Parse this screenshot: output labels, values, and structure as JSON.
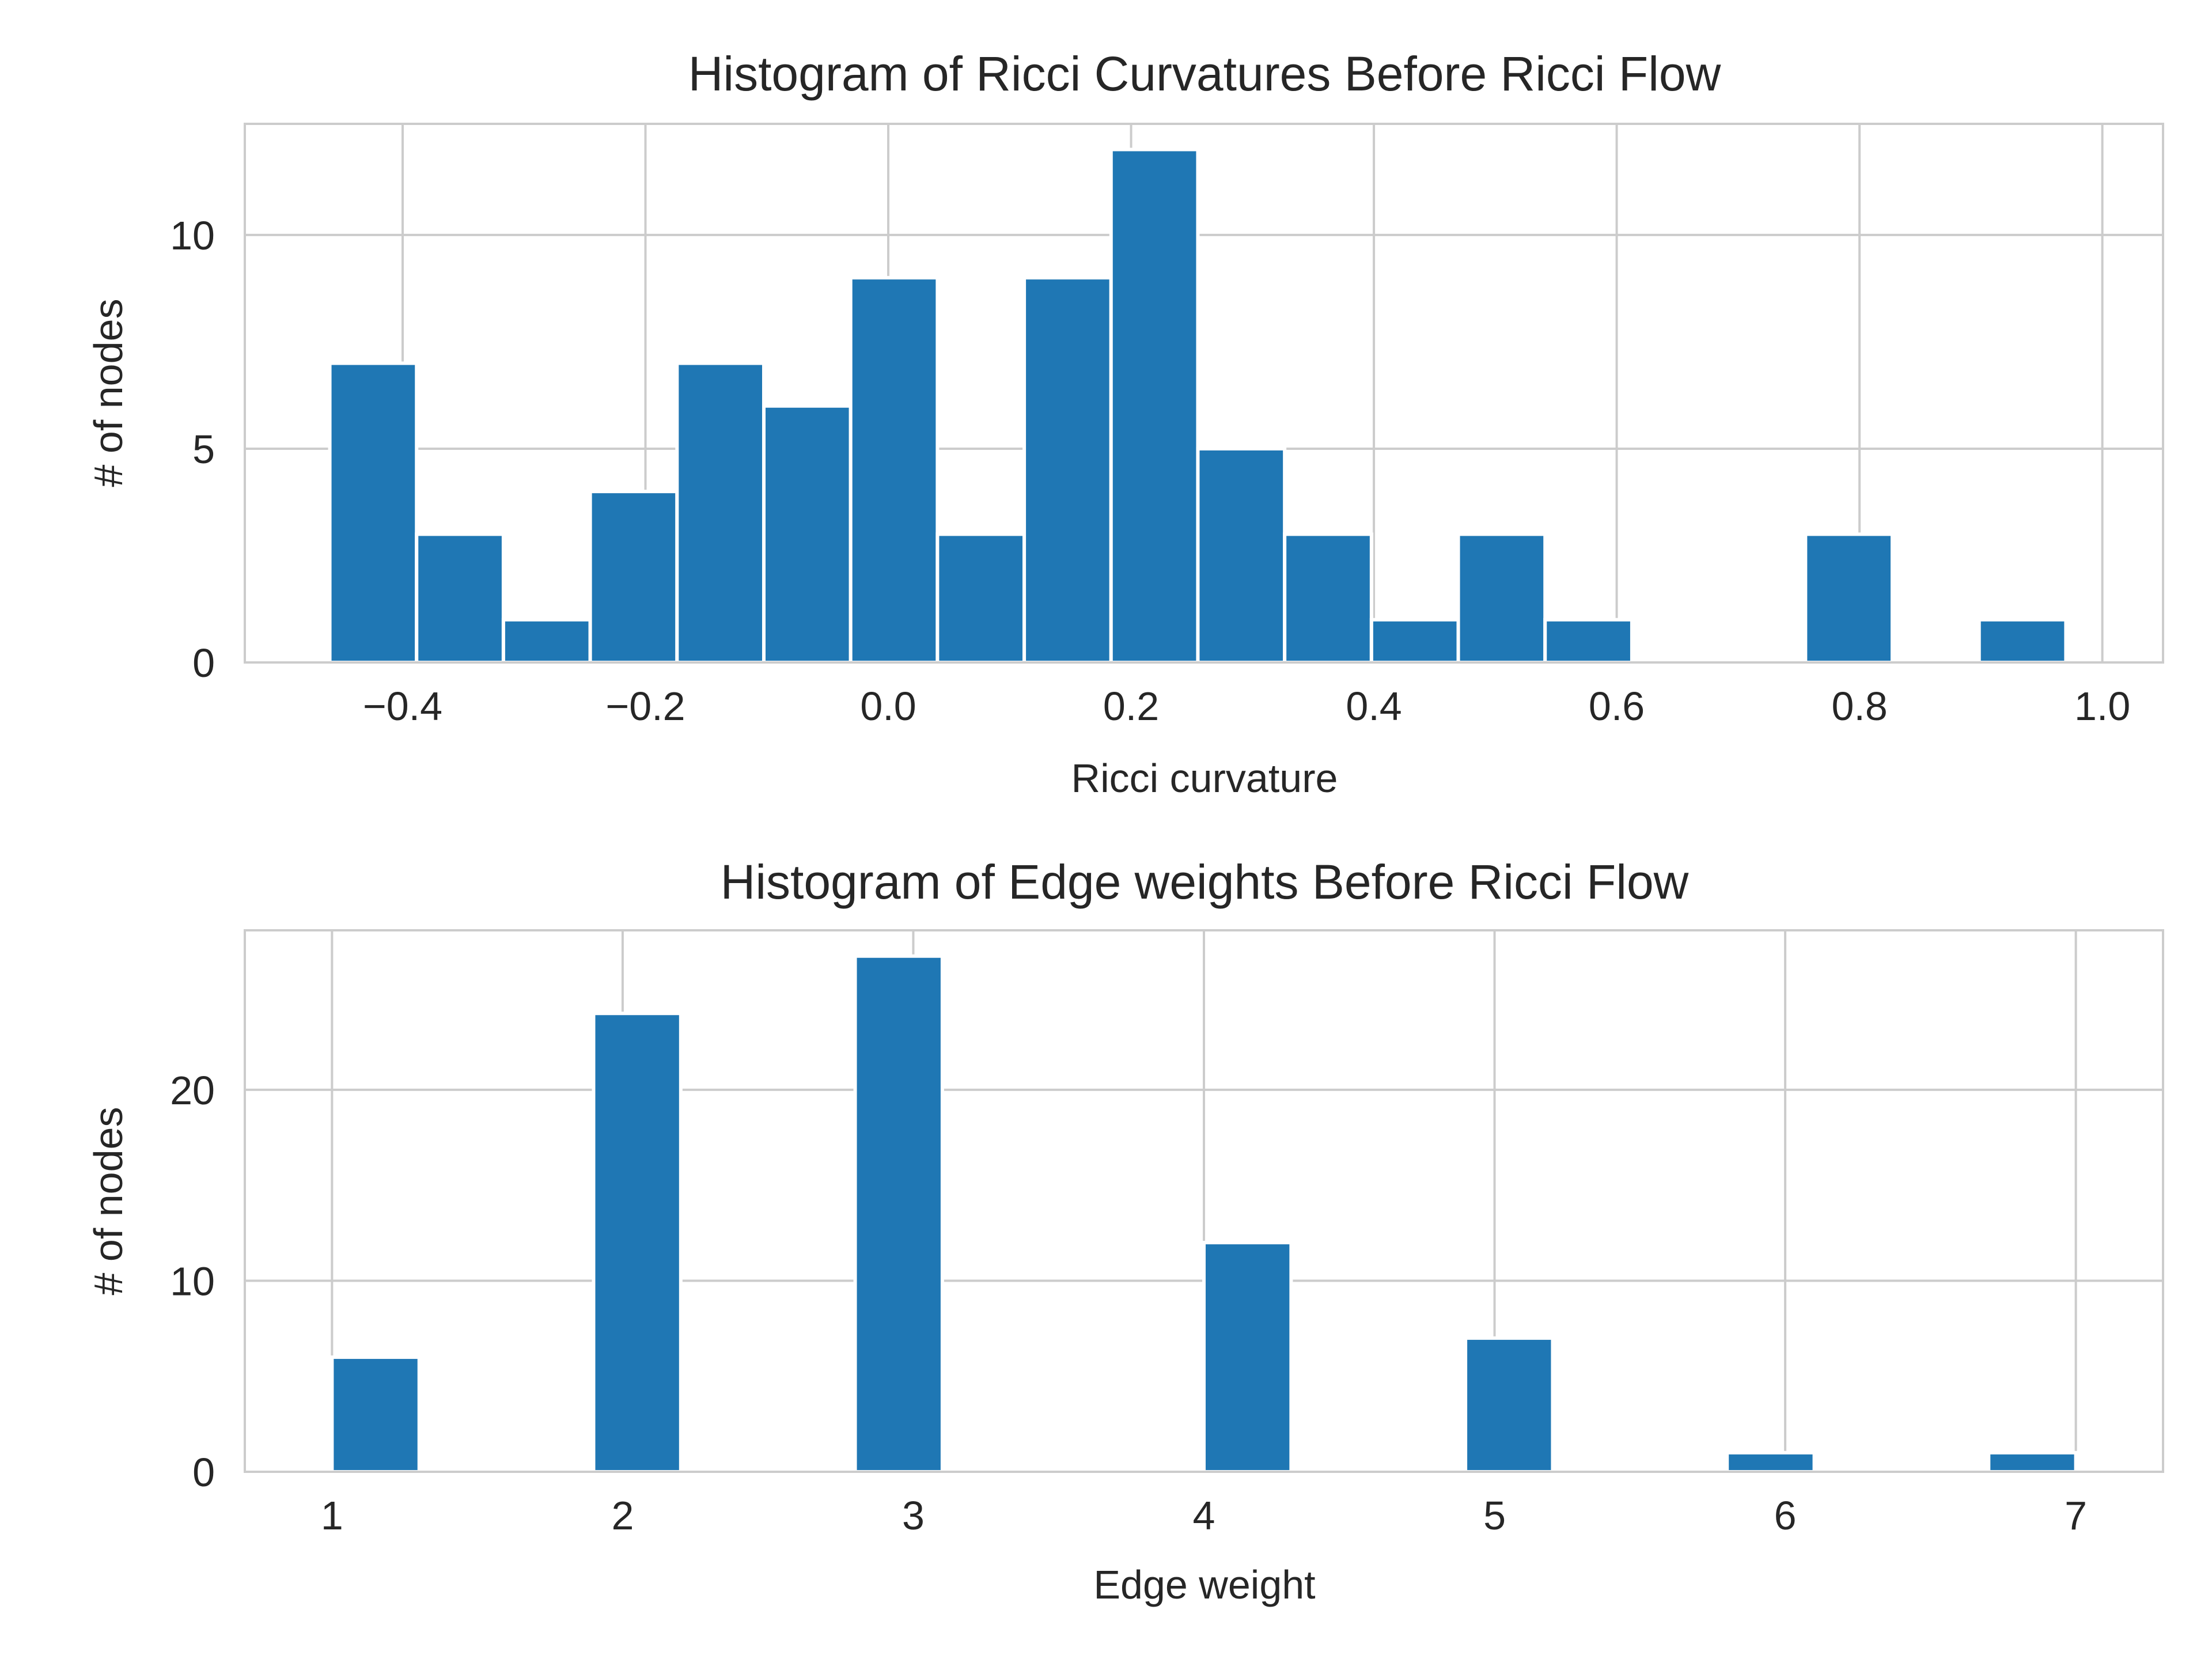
{
  "colors": {
    "bar": "#1f77b4",
    "grid": "#cccccc",
    "text": "#262626",
    "background": "#ffffff"
  },
  "chart_data": [
    {
      "type": "bar",
      "title": "Histogram of Ricci Curvatures Before Ricci Flow",
      "xlabel": "Ricci curvature",
      "ylabel": "# of nodes",
      "xlim": [
        -0.53,
        1.05
      ],
      "ylim": [
        0,
        12.6
      ],
      "xticks": [
        -0.4,
        -0.2,
        0.0,
        0.2,
        0.4,
        0.6,
        0.8,
        1.0
      ],
      "xtick_labels": [
        "−0.4",
        "−0.2",
        "0.0",
        "0.2",
        "0.4",
        "0.6",
        "0.8",
        "1.0"
      ],
      "yticks": [
        0,
        5,
        10
      ],
      "ytick_labels": [
        "0",
        "5",
        "10"
      ],
      "grid": true,
      "bin_edges": [
        -0.46,
        -0.3885,
        -0.317,
        -0.2455,
        -0.174,
        -0.1025,
        -0.031,
        0.0405,
        0.112,
        0.1835,
        0.255,
        0.3265,
        0.398,
        0.4695,
        0.541,
        0.6125,
        0.684,
        0.7555,
        0.827,
        0.8985,
        0.97
      ],
      "values": [
        7,
        3,
        1,
        4,
        7,
        6,
        9,
        3,
        9,
        12,
        5,
        3,
        1,
        3,
        1,
        0,
        0,
        3,
        0,
        1
      ]
    },
    {
      "type": "bar",
      "title": "Histogram of Edge weights Before Ricci Flow",
      "xlabel": "Edge weight",
      "ylabel": "# of nodes",
      "xlim": [
        0.7,
        7.3
      ],
      "ylim": [
        0,
        28.35
      ],
      "xticks": [
        1,
        2,
        3,
        4,
        5,
        6,
        7
      ],
      "xtick_labels": [
        "1",
        "2",
        "3",
        "4",
        "5",
        "6",
        "7"
      ],
      "yticks": [
        0,
        10,
        20
      ],
      "ytick_labels": [
        "0",
        "10",
        "20"
      ],
      "grid": true,
      "bin_edges": [
        1.0,
        1.3,
        1.6,
        1.9,
        2.2,
        2.5,
        2.8,
        3.1,
        3.4,
        3.7,
        4.0,
        4.3,
        4.6,
        4.9,
        5.2,
        5.5,
        5.8,
        6.1,
        6.4,
        6.7,
        7.0
      ],
      "values": [
        6,
        0,
        0,
        24,
        0,
        0,
        27,
        0,
        0,
        0,
        12,
        0,
        0,
        7,
        0,
        0,
        1,
        0,
        0,
        1
      ]
    }
  ]
}
